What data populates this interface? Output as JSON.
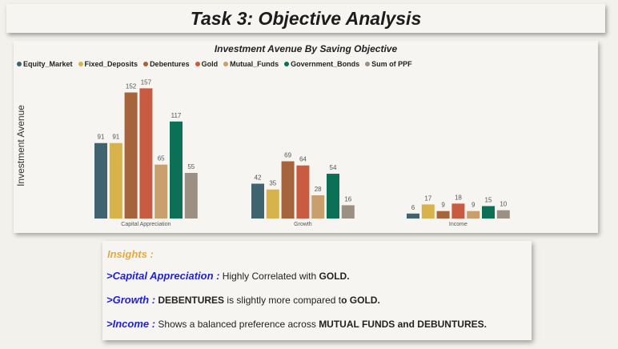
{
  "page_title": "Task 3: Objective Analysis",
  "chart_data": {
    "type": "bar",
    "title": "Investment Avenue By Saving Objective",
    "ylabel": "Investment Avenue",
    "xlabel": "",
    "categories": [
      "Capital Appreciation",
      "Growth",
      "Income"
    ],
    "series": [
      {
        "name": "Equity_Market",
        "color": "#3f6470",
        "values": [
          91,
          42,
          6
        ]
      },
      {
        "name": "Fixed_Deposits",
        "color": "#d8b24a",
        "values": [
          91,
          35,
          17
        ]
      },
      {
        "name": "Debentures",
        "color": "#a5643c",
        "values": [
          152,
          69,
          9
        ]
      },
      {
        "name": "Gold",
        "color": "#c95b40",
        "values": [
          157,
          64,
          18
        ]
      },
      {
        "name": "Mutual_Funds",
        "color": "#c99f6e",
        "values": [
          65,
          28,
          9
        ]
      },
      {
        "name": "Government_Bonds",
        "color": "#0b7055",
        "values": [
          117,
          54,
          15
        ]
      },
      {
        "name": "Sum of PPF",
        "color": "#9c8f83",
        "values": [
          55,
          16,
          10
        ]
      }
    ],
    "ylim": [
      0,
      160
    ],
    "legend": "top-left",
    "grid": false
  },
  "insights": {
    "title": "Insights :",
    "lines": [
      {
        "arrow": ">",
        "key": "Capital Appreciation :",
        "text": " Highly Correlated with ",
        "strong": "GOLD.",
        "tail": ""
      },
      {
        "arrow": ">",
        "key": "Growth :",
        "text": " ",
        "strong": "DEBENTURES",
        "tail": " is slightly more compared t",
        "tail_strong": "o GOLD."
      },
      {
        "arrow": ">",
        "key": "Income :",
        "text": " Shows a balanced preference across ",
        "strong": "MUTUAL FUNDS and DEBUNTURES.",
        "tail": ""
      }
    ]
  }
}
